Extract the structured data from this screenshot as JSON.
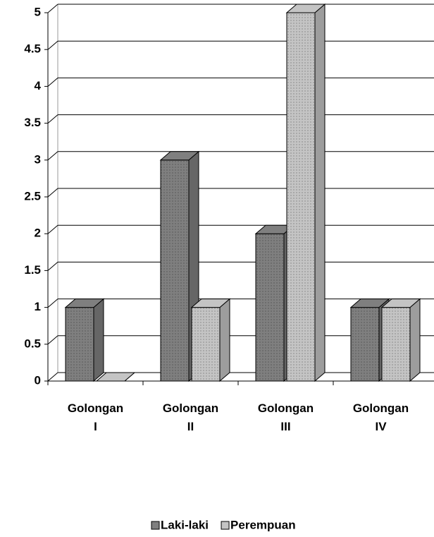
{
  "chart_data": {
    "type": "bar3d",
    "categories": [
      "Golongan I",
      "Golongan II",
      "Golongan III",
      "Golongan IV"
    ],
    "series": [
      {
        "name": "Laki-laki",
        "color": "#7f7f7f",
        "values": [
          1,
          3,
          2,
          1
        ]
      },
      {
        "name": "Perempuan",
        "color": "#c4c4c4",
        "values": [
          0,
          1,
          5,
          1
        ]
      }
    ],
    "ylim": [
      0,
      5
    ],
    "yticks": [
      0,
      0.5,
      1,
      1.5,
      2,
      2.5,
      3,
      3.5,
      4,
      4.5,
      5
    ],
    "grid": true,
    "legend": "bottom"
  }
}
